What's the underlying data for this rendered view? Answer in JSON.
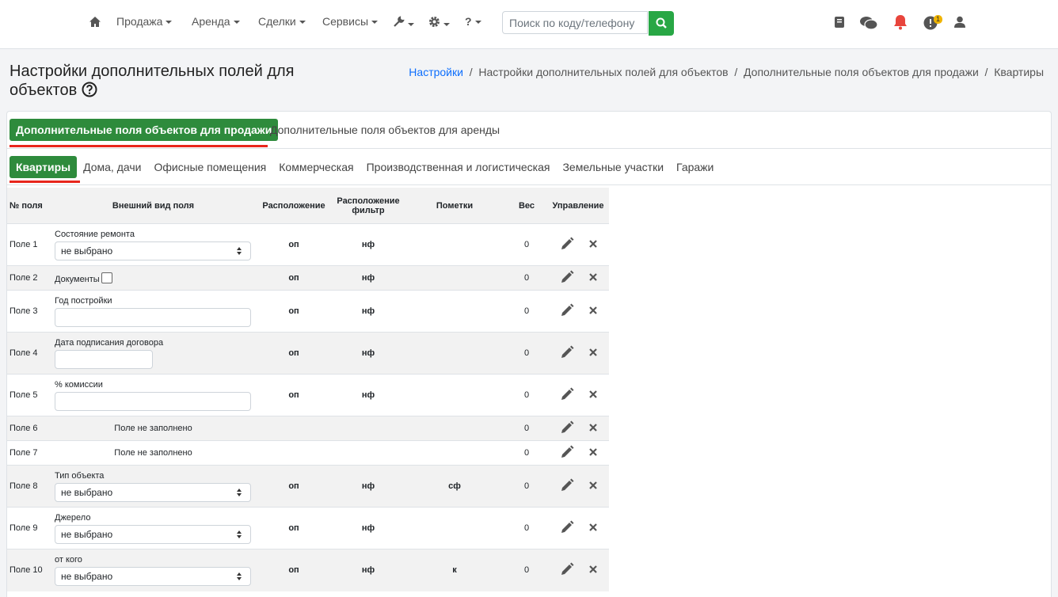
{
  "nav": {
    "items": [
      "Продажа",
      "Аренда",
      "Сделки",
      "Сервисы"
    ],
    "help": "?",
    "search_placeholder": "Поиск по коду/телефону",
    "badge": "1"
  },
  "header": {
    "title": "Настройки дополнительных полей для объектов",
    "breadcrumbs": [
      "Настройки",
      "Настройки дополнительных полей для объектов",
      "Дополнительные поля объектов для продажи",
      "Квартиры"
    ]
  },
  "tabs": [
    "Дополнительные поля объектов для продажи",
    "Дополнительные поля объектов для аренды"
  ],
  "subtabs": [
    "Квартиры",
    "Дома, дачи",
    "Офисные помещения",
    "Коммерческая",
    "Производственная и логистическая",
    "Земельные участки",
    "Гаражи"
  ],
  "table": {
    "columns": [
      "№ поля",
      "Внешний вид поля",
      "Расположение",
      "Расположение фильтр",
      "Пометки",
      "Вес",
      "Управление"
    ],
    "rows": [
      {
        "id": "Поле 1",
        "label": "Состояние ремонта",
        "value": "не выбрано",
        "location": "оп",
        "filter": "нф",
        "weight": 0
      },
      {
        "id": "Поле 2",
        "label": "Документы",
        "location": "оп",
        "filter": "нф",
        "weight": 0
      },
      {
        "id": "Поле 3",
        "label": "Год постройки",
        "location": "оп",
        "filter": "нф",
        "weight": 0
      },
      {
        "id": "Поле 4",
        "label": "Дата подписания договора",
        "location": "оп",
        "filter": "нф",
        "weight": 0
      },
      {
        "id": "Поле 5",
        "label": "% комиссии",
        "location": "оп",
        "filter": "нф",
        "weight": 0
      },
      {
        "id": "Поле 6",
        "label": "Поле не заполнено",
        "weight": 0
      },
      {
        "id": "Поле 7",
        "label": "Поле не заполнено",
        "weight": 0
      },
      {
        "id": "Поле 8",
        "label": "Тип объекта",
        "value": "не выбрано",
        "location": "оп",
        "filter": "нф",
        "marks": "сф",
        "weight": 0
      },
      {
        "id": "Поле 9",
        "label": "Джерело",
        "value": "не выбрано",
        "location": "оп",
        "filter": "нф",
        "weight": 0
      },
      {
        "id": "Поле 10",
        "label": "от кого",
        "value": "не выбрано",
        "location": "оп",
        "filter": "нф",
        "marks": "к",
        "weight": 0
      }
    ]
  }
}
